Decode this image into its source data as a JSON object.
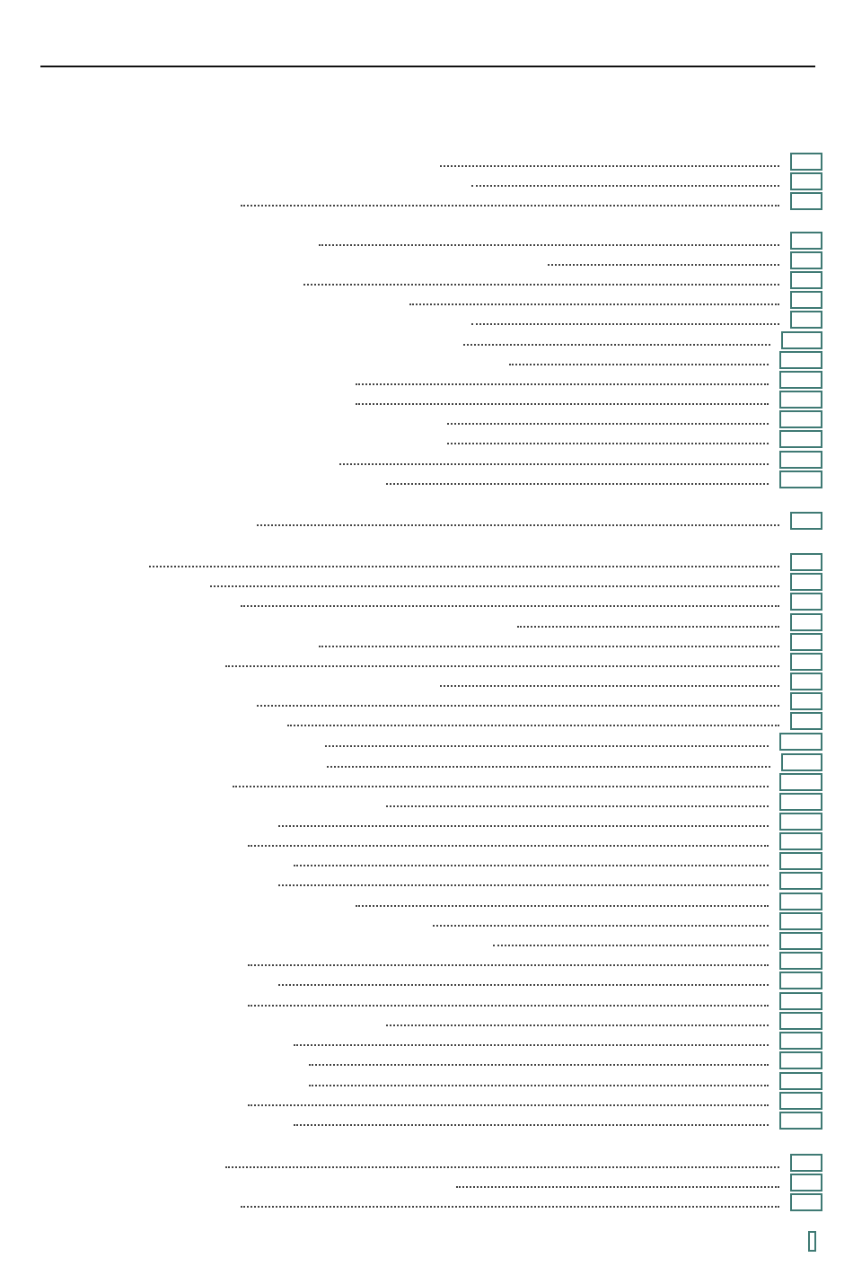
{
  "document": {
    "type": "table-of-contents",
    "rule_color": "#111111",
    "box_color": "#3f7a74"
  },
  "toc": {
    "entries_visible_text": [],
    "page_numbers_visible_text": []
  },
  "footer": {
    "page_number": ""
  }
}
